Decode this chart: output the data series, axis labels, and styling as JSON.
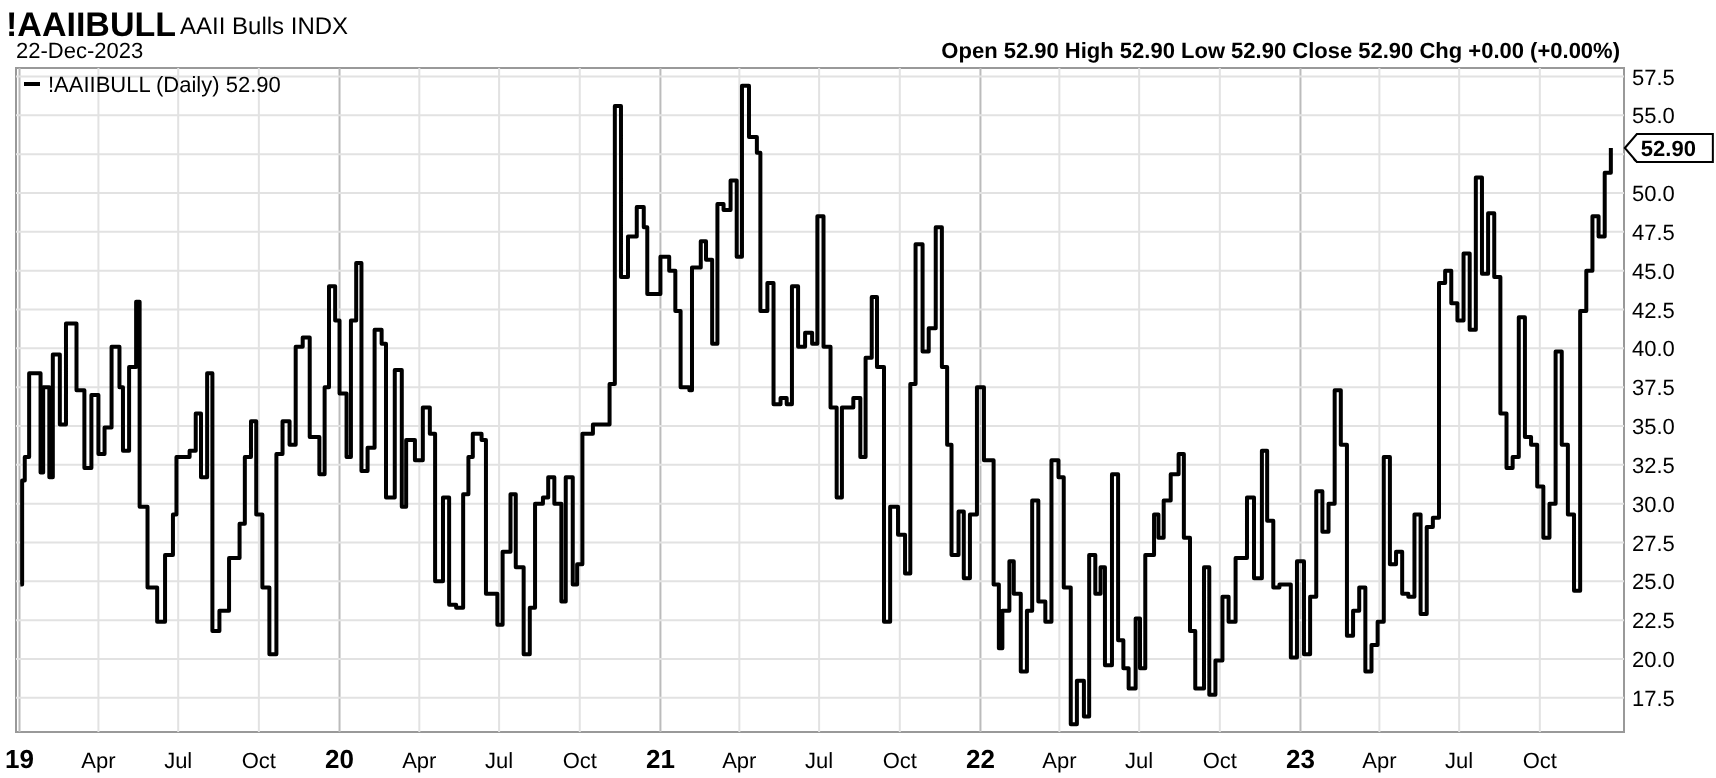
{
  "chart_data": {
    "type": "step",
    "title": "!AAIIBULL",
    "subtitle": "AAII Bulls INDX",
    "annotations": [
      "22-Dec-2023",
      "Open 52.90 High 52.90 Low 52.90 Close 52.90 Chg +0.00 (+0.00%)",
      {
        "text": "52.90",
        "x": "2023-12-21",
        "y": 52.9
      }
    ],
    "legend": "top left",
    "grid": true,
    "xlim": [
      "2018-12-28",
      "2024-01-05"
    ],
    "xticks": [
      {
        "value": "2019-01",
        "label": "19"
      },
      {
        "value": "2019-04",
        "label": "Apr"
      },
      {
        "value": "2019-07",
        "label": "Jul"
      },
      {
        "value": "2019-10",
        "label": "Oct"
      },
      {
        "value": "2020-01",
        "label": "20"
      },
      {
        "value": "2020-04",
        "label": "Apr"
      },
      {
        "value": "2020-07",
        "label": "Jul"
      },
      {
        "value": "2020-10",
        "label": "Oct"
      },
      {
        "value": "2021-01",
        "label": "21"
      },
      {
        "value": "2021-04",
        "label": "Apr"
      },
      {
        "value": "2021-07",
        "label": "Jul"
      },
      {
        "value": "2021-10",
        "label": "Oct"
      },
      {
        "value": "2022-01",
        "label": "22"
      },
      {
        "value": "2022-04",
        "label": "Apr"
      },
      {
        "value": "2022-07",
        "label": "Jul"
      },
      {
        "value": "2022-10",
        "label": "Oct"
      },
      {
        "value": "2023-01",
        "label": "23"
      },
      {
        "value": "2023-04",
        "label": "Apr"
      },
      {
        "value": "2023-07",
        "label": "Jul"
      },
      {
        "value": "2023-10",
        "label": "Oct"
      }
    ],
    "ylim": [
      15.3,
      58.05
    ],
    "yticks": [
      17.5,
      {
        "value": 20,
        "label": "20.0"
      },
      22.5,
      {
        "value": 25,
        "label": "25.0"
      },
      27.5,
      {
        "value": 30,
        "label": "30.0"
      },
      32.5,
      {
        "value": 35,
        "label": "35.0"
      },
      37.5,
      {
        "value": 40,
        "label": "40.0"
      },
      42.5,
      {
        "value": 45,
        "label": "45.0"
      },
      47.5,
      {
        "value": 50,
        "label": "50.0"
      },
      52.5,
      {
        "value": 55,
        "label": "55.0"
      },
      57.5
    ],
    "series": [
      {
        "name": "!AAIIBULL (Daily) 52.90",
        "color": "#000000",
        "x": [
          "2019-01-02",
          "2019-01-04",
          "2019-01-07",
          "2019-01-12",
          "2019-01-25",
          "2019-01-28",
          "2019-02-04",
          "2019-02-08",
          "2019-02-16",
          "2019-02-23",
          "2019-03-07",
          "2019-03-16",
          "2019-03-24",
          "2019-04-01",
          "2019-04-08",
          "2019-04-16",
          "2019-04-25",
          "2019-04-29",
          "2019-05-06",
          "2019-05-14",
          "2019-05-18",
          "2019-05-27",
          "2019-06-07",
          "2019-06-16",
          "2019-06-25",
          "2019-06-29",
          "2019-07-14",
          "2019-07-21",
          "2019-07-27",
          "2019-08-03",
          "2019-08-09",
          "2019-08-17",
          "2019-08-28",
          "2019-09-09",
          "2019-09-15",
          "2019-09-22",
          "2019-09-28",
          "2019-10-05",
          "2019-10-13",
          "2019-10-21",
          "2019-10-28",
          "2019-11-05",
          "2019-11-12",
          "2019-11-20",
          "2019-11-28",
          "2019-12-09",
          "2019-12-15",
          "2019-12-20",
          "2019-12-27",
          "2020-01-01",
          "2020-01-09",
          "2020-01-14",
          "2020-01-20",
          "2020-01-26",
          "2020-02-02",
          "2020-02-10",
          "2020-02-18",
          "2020-02-23",
          "2020-03-04",
          "2020-03-12",
          "2020-03-17",
          "2020-03-27",
          "2020-04-05",
          "2020-04-13",
          "2020-04-19",
          "2020-04-28",
          "2020-05-05",
          "2020-05-13",
          "2020-05-21",
          "2020-05-27",
          "2020-06-01",
          "2020-06-11",
          "2020-06-16",
          "2020-06-29",
          "2020-07-05",
          "2020-07-14",
          "2020-07-20",
          "2020-07-29",
          "2020-08-05",
          "2020-08-11",
          "2020-08-20",
          "2020-08-26",
          "2020-09-02",
          "2020-09-10",
          "2020-09-15",
          "2020-09-23",
          "2020-09-28",
          "2020-10-04",
          "2020-10-16",
          "2020-10-29",
          "2020-11-04",
          "2020-11-10",
          "2020-11-17",
          "2020-11-25",
          "2020-12-05",
          "2020-12-13",
          "2020-12-17",
          "2021-01-01",
          "2021-01-11",
          "2021-01-18",
          "2021-01-24",
          "2021-02-03",
          "2021-02-06",
          "2021-02-16",
          "2021-02-22",
          "2021-03-01",
          "2021-03-07",
          "2021-03-14",
          "2021-03-22",
          "2021-03-29",
          "2021-04-04",
          "2021-04-12",
          "2021-04-21",
          "2021-04-25",
          "2021-05-03",
          "2021-05-10",
          "2021-05-18",
          "2021-05-25",
          "2021-05-31",
          "2021-06-07",
          "2021-06-15",
          "2021-06-23",
          "2021-06-29",
          "2021-07-06",
          "2021-07-14",
          "2021-07-21",
          "2021-07-27",
          "2021-08-09",
          "2021-08-17",
          "2021-08-23",
          "2021-08-30",
          "2021-09-05",
          "2021-09-13",
          "2021-09-20",
          "2021-09-29",
          "2021-10-07",
          "2021-10-13",
          "2021-10-19",
          "2021-10-27",
          "2021-11-03",
          "2021-11-11",
          "2021-11-18",
          "2021-11-24",
          "2021-11-29",
          "2021-12-07",
          "2021-12-13",
          "2021-12-20",
          "2021-12-28",
          "2022-01-05",
          "2022-01-16",
          "2022-01-22",
          "2022-01-26",
          "2022-02-03",
          "2022-02-08",
          "2022-02-16",
          "2022-02-23",
          "2022-03-01",
          "2022-03-08",
          "2022-03-16",
          "2022-03-23",
          "2022-03-31",
          "2022-04-06",
          "2022-04-14",
          "2022-04-21",
          "2022-04-29",
          "2022-05-05",
          "2022-05-12",
          "2022-05-18",
          "2022-05-23",
          "2022-05-31",
          "2022-06-07",
          "2022-06-13",
          "2022-06-19",
          "2022-06-27",
          "2022-07-02",
          "2022-07-08",
          "2022-07-18",
          "2022-07-23",
          "2022-07-29",
          "2022-08-06",
          "2022-08-15",
          "2022-08-21",
          "2022-08-28",
          "2022-09-03",
          "2022-09-13",
          "2022-09-19",
          "2022-09-26",
          "2022-10-04",
          "2022-10-11",
          "2022-10-19",
          "2022-11-01",
          "2022-11-09",
          "2022-11-18",
          "2022-11-24",
          "2022-12-01",
          "2022-12-08",
          "2022-12-21",
          "2022-12-28",
          "2023-01-05",
          "2023-01-12",
          "2023-01-19",
          "2023-01-26",
          "2023-02-02",
          "2023-02-09",
          "2023-02-16",
          "2023-02-23",
          "2023-03-02",
          "2023-03-09",
          "2023-03-16",
          "2023-03-23",
          "2023-03-30",
          "2023-04-06",
          "2023-04-13",
          "2023-04-20",
          "2023-04-27",
          "2023-05-04",
          "2023-05-11",
          "2023-05-18",
          "2023-05-25",
          "2023-06-01",
          "2023-06-08",
          "2023-06-15",
          "2023-06-22",
          "2023-06-29",
          "2023-07-06",
          "2023-07-13",
          "2023-07-20",
          "2023-07-27",
          "2023-08-03",
          "2023-08-10",
          "2023-08-17",
          "2023-08-24",
          "2023-08-31",
          "2023-09-07",
          "2023-09-14",
          "2023-09-21",
          "2023-09-28",
          "2023-10-05",
          "2023-10-12",
          "2023-10-19",
          "2023-10-26",
          "2023-11-02",
          "2023-11-09",
          "2023-11-16",
          "2023-11-23",
          "2023-11-30",
          "2023-12-07",
          "2023-12-14",
          "2023-12-21"
        ],
        "values": [
          24.8,
          31.5,
          33,
          38.4,
          32,
          37.5,
          31.7,
          39.6,
          35.1,
          41.6,
          37.3,
          32.3,
          37,
          33.2,
          34.9,
          40.1,
          37.5,
          33.4,
          38.8,
          43,
          29.8,
          24.6,
          22.4,
          26.7,
          29.3,
          33,
          33.4,
          35.8,
          31.7,
          38.4,
          21.8,
          23.1,
          26.5,
          28.7,
          33,
          35.3,
          29.3,
          24.6,
          20.3,
          33.2,
          35.3,
          33.8,
          40.1,
          40.7,
          34.3,
          31.9,
          37.5,
          44,
          41.8,
          37.1,
          33,
          41.8,
          45.5,
          32.1,
          33.6,
          41.2,
          40.3,
          30.4,
          38.6,
          29.8,
          34.1,
          32.8,
          36.2,
          34.5,
          25,
          30.4,
          23.5,
          23.3,
          30.6,
          33,
          34.5,
          34.1,
          24.2,
          22.2,
          26.9,
          30.6,
          25.9,
          20.3,
          23.3,
          30,
          30.4,
          31.7,
          30,
          23.7,
          31.7,
          24.8,
          26.1,
          34.5,
          35.1,
          35.1,
          37.7,
          55.6,
          44.6,
          47.2,
          49.1,
          47.8,
          43.5,
          45.9,
          45,
          42.4,
          37.5,
          37.3,
          45.2,
          46.9,
          45.7,
          40.3,
          49.3,
          48.9,
          50.8,
          45.9,
          56.9,
          53.6,
          52.6,
          42.4,
          44.2,
          36.4,
          36.8,
          36.4,
          44,
          40.1,
          41,
          40.3,
          48.5,
          40.1,
          36.2,
          30.4,
          36.2,
          36.8,
          33,
          39.4,
          43.3,
          38.8,
          22.4,
          29.8,
          28,
          25.5,
          37.7,
          46.7,
          39.8,
          41.3,
          47.8,
          38.8,
          33.8,
          26.7,
          29.5,
          25.2,
          29.3,
          37.5,
          32.8,
          24.8,
          20.7,
          23.1,
          26.3,
          24.2,
          19.2,
          23.1,
          30.2,
          23.7,
          22.4,
          32.8,
          31.7,
          24.6,
          15.8,
          18.6,
          16.3,
          26.7,
          24.2,
          25.9,
          19.6,
          31.9,
          21.2,
          19.4,
          18.1,
          22.6,
          19.4,
          26.7,
          29.3,
          27.8,
          30.2,
          31.9,
          33.2,
          27.8,
          21.8,
          18.1,
          25.9,
          17.7,
          19.9,
          24,
          22.4,
          26.5,
          30.4,
          25.2,
          33.4,
          28.9,
          24.6,
          24.8,
          20.1,
          26.3,
          20.3,
          24,
          30.8,
          28.2,
          30,
          37.3,
          33.8,
          21.5,
          23.1,
          24.6,
          19.2,
          20.9,
          22.4,
          33,
          26.1,
          26.9,
          24.2,
          24,
          29.3,
          22.9,
          28.5,
          29.1,
          44.2,
          45,
          42.9,
          41.8,
          46.1,
          41.2,
          51,
          44.8,
          48.7,
          44.6,
          35.8,
          32.3,
          33,
          42,
          34.3,
          33.8,
          31.1,
          27.8,
          30,
          39.8,
          33.8,
          29.3,
          24.4,
          42.4,
          45,
          48.5,
          47.2,
          51.3,
          52.9
        ]
      }
    ]
  }
}
